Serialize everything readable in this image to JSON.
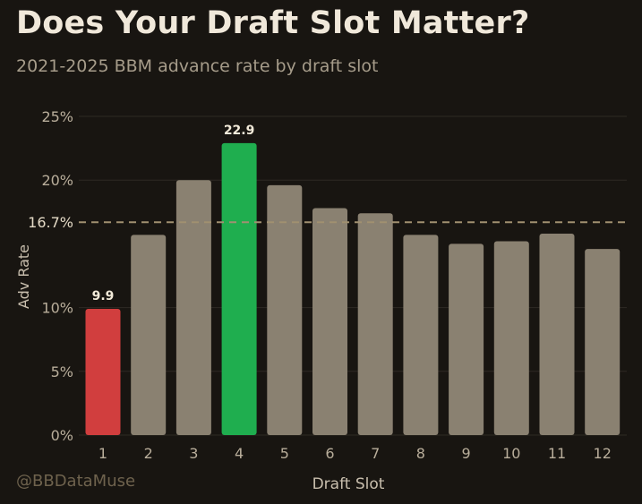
{
  "header": {
    "title": "Does Your Draft Slot Matter?",
    "subtitle": "2021-2025 BBM advance rate by draft slot"
  },
  "footer": {
    "watermark": "@BBDataMuse"
  },
  "colors": {
    "background": "#181511",
    "bar_default": "#8a8171",
    "bar_lowest": "#d13e3e",
    "bar_highest": "#1fae4f",
    "reference_line": "#a09070",
    "grid": "#2e2a24"
  },
  "chart_data": {
    "type": "bar",
    "title": "Does Your Draft Slot Matter?",
    "subtitle": "2021-2025 BBM advance rate by draft slot",
    "xlabel": "Draft Slot",
    "ylabel": "Adv Rate",
    "categories": [
      "1",
      "2",
      "3",
      "4",
      "5",
      "6",
      "7",
      "8",
      "9",
      "10",
      "11",
      "12"
    ],
    "values": [
      9.9,
      15.7,
      20.0,
      22.9,
      19.6,
      17.8,
      17.4,
      15.7,
      15.0,
      15.2,
      15.8,
      14.6
    ],
    "ylim": [
      0,
      25
    ],
    "yticks": [
      0,
      5,
      10,
      20,
      25
    ],
    "ytick_labels": [
      "0%",
      "5%",
      "10%",
      "20%",
      "25%"
    ],
    "reference_line": {
      "value": 16.7,
      "label": "16.7%",
      "style": "dashed"
    },
    "highlights": [
      {
        "category": "1",
        "role": "lowest",
        "label": "9.9",
        "color": "#d13e3e"
      },
      {
        "category": "4",
        "role": "highest",
        "label": "22.9",
        "color": "#1fae4f"
      }
    ],
    "grid": true,
    "legend": "none"
  }
}
